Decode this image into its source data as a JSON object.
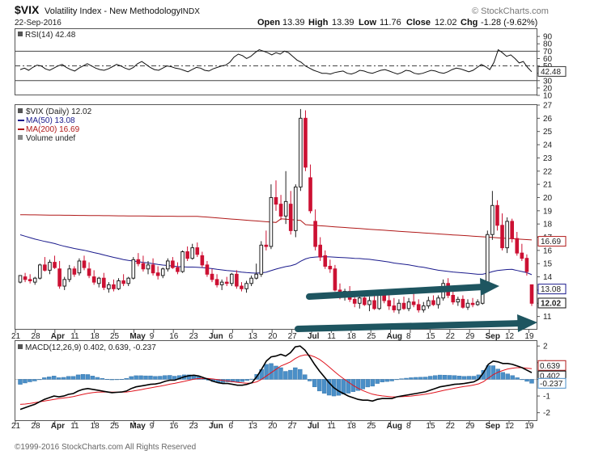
{
  "header": {
    "symbol": "$VIX",
    "name": "Volatility Index - New Methodology",
    "exchange": "INDX",
    "date": "22-Sep-2016",
    "watermark": "© StockCharts.com",
    "open_label": "Open",
    "open": "13.39",
    "high_label": "High",
    "high": "13.39",
    "low_label": "Low",
    "low": "11.76",
    "close_label": "Close",
    "close": "12.02",
    "chg_label": "Chg",
    "chg": "-1.28 (-9.62%)"
  },
  "footer": {
    "copyright": "©1999-2016 StockCharts.com  All Rights Reserved"
  },
  "colors": {
    "up": "#222222",
    "down": "#cc1133",
    "ma50": "#1a1a8c",
    "ma200": "#b01818",
    "volume": "#4a8fc8",
    "arrow": "#1e5560"
  },
  "x_axis": {
    "labels": [
      "21",
      "28",
      "Apr",
      "11",
      "18",
      "25",
      "May",
      "9",
      "16",
      "23",
      "Jun",
      "6",
      "13",
      "20",
      "27",
      "Jul",
      "11",
      "18",
      "25",
      "Aug",
      "8",
      "15",
      "22",
      "29",
      "Sep",
      "12",
      "19"
    ],
    "bold": [
      "Apr",
      "May",
      "Jun",
      "Jul",
      "Aug",
      "Sep"
    ]
  },
  "chart_data": [
    {
      "panel": "rsi",
      "type": "line",
      "legend": "RSI(14) 42.48",
      "ylim": [
        10,
        100
      ],
      "y_ticks": [
        90,
        80,
        70,
        60,
        50,
        40,
        30,
        20,
        10
      ],
      "reference_lines": [
        70,
        50,
        30
      ],
      "last_value": "42.48",
      "values": [
        45,
        47,
        44,
        48,
        51,
        50,
        46,
        44,
        47,
        50,
        52,
        48,
        45,
        43,
        47,
        50,
        53,
        50,
        47,
        45,
        44,
        46,
        49,
        52,
        50,
        47,
        45,
        48,
        53,
        56,
        52,
        48,
        45,
        44,
        47,
        50,
        49,
        47,
        46,
        44,
        42,
        45,
        48,
        47,
        44,
        43,
        46,
        48,
        50,
        51,
        55,
        62,
        66,
        64,
        60,
        63,
        68,
        72,
        70,
        68,
        65,
        68,
        66,
        70,
        68,
        63,
        58,
        55,
        50,
        47,
        44,
        42,
        40,
        40,
        39,
        41,
        42,
        43,
        40,
        39,
        41,
        44,
        43,
        41,
        40,
        42,
        44,
        45,
        43,
        41,
        39,
        41,
        44,
        43,
        40,
        39,
        40,
        42,
        44,
        43,
        41,
        40,
        42,
        45,
        47,
        46,
        44,
        42,
        44,
        48,
        52,
        49,
        45,
        55,
        72,
        68,
        63,
        65,
        60,
        54,
        56,
        48,
        42
      ]
    },
    {
      "panel": "price",
      "type": "candlestick",
      "legend": [
        "$VIX (Daily) 12.02",
        "MA(50) 13.08",
        "MA(200) 16.69",
        "Volume undef"
      ],
      "ylim": [
        10,
        27
      ],
      "y_ticks": [
        27,
        26,
        25,
        24,
        23,
        22,
        21,
        20,
        19,
        18,
        17,
        16,
        15,
        14,
        13,
        12,
        11
      ],
      "ma50_last": "13.08",
      "ma200_last": "16.69",
      "close_last": "12.02",
      "candles": [
        [
          13.6,
          14.1,
          13.5,
          14.1
        ],
        [
          14.0,
          14.3,
          13.6,
          13.8
        ],
        [
          13.8,
          14.2,
          13.5,
          13.7
        ],
        [
          13.6,
          14.0,
          13.4,
          13.9
        ],
        [
          13.9,
          15.0,
          13.8,
          14.9
        ],
        [
          14.9,
          15.5,
          14.4,
          14.5
        ],
        [
          14.5,
          15.3,
          14.2,
          15.1
        ],
        [
          15.1,
          15.6,
          14.6,
          14.7
        ],
        [
          14.6,
          15.2,
          13.1,
          13.3
        ],
        [
          13.3,
          14.0,
          13.0,
          13.8
        ],
        [
          13.8,
          14.9,
          13.6,
          14.6
        ],
        [
          14.6,
          14.8,
          14.0,
          14.2
        ],
        [
          14.3,
          15.4,
          14.1,
          15.2
        ],
        [
          15.2,
          15.6,
          14.5,
          14.7
        ],
        [
          14.6,
          15.1,
          13.9,
          14.1
        ],
        [
          14.0,
          14.5,
          13.4,
          13.6
        ],
        [
          13.5,
          14.0,
          13.2,
          13.9
        ],
        [
          13.9,
          14.3,
          13.0,
          13.2
        ],
        [
          13.1,
          13.6,
          12.8,
          13.4
        ],
        [
          13.4,
          13.8,
          12.9,
          13.1
        ],
        [
          13.1,
          13.9,
          13.0,
          13.7
        ],
        [
          13.7,
          14.2,
          13.3,
          13.5
        ],
        [
          13.5,
          14.0,
          13.3,
          13.9
        ],
        [
          13.9,
          15.5,
          13.8,
          15.3
        ],
        [
          15.3,
          15.8,
          14.8,
          15.0
        ],
        [
          15.0,
          15.6,
          14.4,
          14.6
        ],
        [
          14.6,
          15.2,
          14.2,
          14.9
        ],
        [
          14.9,
          15.4,
          14.1,
          14.3
        ],
        [
          14.3,
          14.8,
          13.8,
          14.1
        ],
        [
          14.1,
          14.7,
          13.9,
          14.6
        ],
        [
          14.6,
          15.4,
          14.4,
          15.2
        ],
        [
          15.2,
          15.5,
          14.6,
          14.7
        ],
        [
          14.7,
          15.1,
          14.2,
          14.4
        ],
        [
          14.4,
          16.0,
          14.3,
          15.9
        ],
        [
          15.9,
          16.3,
          15.2,
          15.4
        ],
        [
          15.4,
          16.5,
          15.3,
          16.2
        ],
        [
          16.2,
          16.6,
          15.5,
          15.7
        ],
        [
          15.6,
          15.9,
          14.7,
          14.9
        ],
        [
          14.9,
          15.2,
          14.0,
          14.2
        ],
        [
          14.2,
          14.6,
          13.6,
          13.8
        ],
        [
          13.8,
          14.2,
          13.2,
          13.4
        ],
        [
          13.4,
          13.8,
          13.0,
          13.6
        ],
        [
          13.6,
          14.0,
          13.3,
          13.5
        ],
        [
          13.5,
          14.3,
          13.3,
          14.2
        ],
        [
          14.2,
          14.5,
          13.1,
          13.3
        ],
        [
          13.3,
          13.6,
          12.9,
          13.1
        ],
        [
          13.1,
          13.7,
          12.8,
          13.5
        ],
        [
          13.5,
          14.1,
          13.3,
          13.9
        ],
        [
          13.9,
          15.0,
          13.8,
          14.2
        ],
        [
          14.2,
          16.7,
          14.0,
          16.4
        ],
        [
          16.4,
          17.5,
          16.0,
          16.3
        ],
        [
          16.3,
          21.0,
          16.1,
          20.0
        ],
        [
          20.0,
          21.3,
          19.0,
          19.5
        ],
        [
          19.5,
          20.2,
          18.3,
          18.6
        ],
        [
          18.6,
          22.0,
          18.0,
          19.7
        ],
        [
          19.5,
          20.5,
          17.2,
          17.5
        ],
        [
          17.5,
          21.0,
          17.0,
          20.8
        ],
        [
          20.8,
          26.7,
          20.5,
          26.0
        ],
        [
          26.0,
          26.6,
          22.0,
          22.3
        ],
        [
          21.5,
          22.5,
          18.8,
          19.0
        ],
        [
          18.2,
          19.1,
          16.0,
          16.3
        ],
        [
          16.4,
          17.0,
          15.2,
          15.5
        ],
        [
          15.6,
          16.0,
          14.6,
          14.8
        ],
        [
          14.8,
          15.3,
          14.3,
          14.6
        ],
        [
          14.6,
          14.9,
          12.9,
          13.0
        ],
        [
          13.0,
          13.5,
          12.3,
          12.5
        ],
        [
          12.5,
          13.1,
          12.2,
          12.9
        ],
        [
          12.9,
          13.3,
          12.1,
          12.3
        ],
        [
          12.3,
          12.8,
          11.7,
          12.0
        ],
        [
          12.0,
          12.6,
          11.6,
          12.4
        ],
        [
          12.4,
          12.8,
          11.8,
          11.9
        ],
        [
          11.9,
          12.5,
          11.4,
          12.2
        ],
        [
          12.2,
          12.7,
          11.5,
          11.6
        ],
        [
          11.6,
          12.9,
          11.5,
          12.7
        ],
        [
          12.7,
          13.0,
          12.0,
          12.2
        ],
        [
          12.2,
          12.6,
          11.5,
          11.8
        ],
        [
          11.8,
          12.4,
          11.3,
          11.5
        ],
        [
          11.5,
          12.3,
          11.2,
          12.0
        ],
        [
          12.0,
          12.5,
          11.5,
          11.6
        ],
        [
          11.6,
          12.4,
          11.4,
          12.1
        ],
        [
          12.1,
          12.8,
          11.7,
          11.9
        ],
        [
          11.9,
          12.3,
          11.3,
          11.5
        ],
        [
          11.5,
          12.1,
          11.3,
          11.8
        ],
        [
          11.8,
          12.5,
          11.6,
          12.2
        ],
        [
          12.2,
          12.6,
          11.8,
          11.9
        ],
        [
          11.9,
          12.6,
          11.6,
          12.4
        ],
        [
          12.4,
          13.8,
          12.2,
          13.5
        ],
        [
          13.5,
          13.9,
          12.4,
          12.6
        ],
        [
          12.6,
          13.0,
          11.9,
          12.1
        ],
        [
          12.1,
          12.5,
          11.8,
          12.3
        ],
        [
          12.3,
          12.6,
          11.6,
          11.7
        ],
        [
          11.7,
          12.3,
          11.5,
          12.0
        ],
        [
          12.0,
          12.4,
          11.7,
          11.9
        ],
        [
          11.9,
          12.3,
          11.8,
          12.1
        ],
        [
          12.0,
          13.5,
          11.9,
          13.3
        ],
        [
          13.3,
          17.5,
          13.2,
          17.2
        ],
        [
          17.2,
          20.5,
          16.8,
          19.4
        ],
        [
          19.4,
          19.8,
          17.5,
          17.9
        ],
        [
          17.9,
          18.8,
          16.0,
          16.2
        ],
        [
          16.2,
          18.5,
          15.8,
          18.2
        ],
        [
          18.2,
          18.4,
          16.6,
          16.9
        ],
        [
          16.9,
          17.4,
          15.6,
          15.8
        ],
        [
          15.8,
          16.5,
          15.2,
          15.4
        ],
        [
          15.4,
          15.7,
          14.1,
          14.4
        ],
        [
          13.4,
          13.4,
          11.8,
          12.0
        ]
      ]
    },
    {
      "panel": "macd",
      "type": "line+histogram",
      "legend": "MACD(12,26,9) 0.402, 0.639, -0.237",
      "legend_values": [
        "0.402",
        "0.639",
        "-0.237"
      ],
      "ylim": [
        -2.5,
        2.3
      ],
      "y_ticks": [
        2,
        1,
        0,
        -1,
        -2
      ],
      "macd": [
        -1.8,
        -1.7,
        -1.6,
        -1.5,
        -1.35,
        -1.2,
        -1.1,
        -1.0,
        -1.05,
        -1.0,
        -0.9,
        -0.85,
        -0.7,
        -0.6,
        -0.55,
        -0.6,
        -0.65,
        -0.7,
        -0.75,
        -0.8,
        -0.78,
        -0.76,
        -0.7,
        -0.55,
        -0.45,
        -0.4,
        -0.35,
        -0.3,
        -0.28,
        -0.22,
        -0.12,
        -0.05,
        -0.05,
        0.05,
        0.15,
        0.22,
        0.25,
        0.2,
        0.1,
        0.0,
        -0.12,
        -0.2,
        -0.25,
        -0.25,
        -0.3,
        -0.35,
        -0.35,
        -0.3,
        -0.2,
        0.15,
        0.6,
        1.1,
        1.35,
        1.4,
        1.5,
        1.4,
        1.6,
        1.95,
        2.0,
        1.75,
        1.35,
        0.9,
        0.5,
        0.15,
        -0.2,
        -0.5,
        -0.7,
        -0.85,
        -1.0,
        -1.1,
        -1.2,
        -1.25,
        -1.25,
        -1.3,
        -1.2,
        -1.15,
        -1.15,
        -1.15,
        -1.05,
        -1.0,
        -0.95,
        -0.9,
        -0.85,
        -0.8,
        -0.75,
        -0.65,
        -0.55,
        -0.45,
        -0.4,
        -0.35,
        -0.3,
        -0.28,
        -0.25,
        -0.2,
        -0.15,
        0.0,
        0.4,
        0.9,
        1.1,
        1.05,
        0.95,
        0.95,
        0.9,
        0.8,
        0.7,
        0.55,
        0.402
      ],
      "signal": [
        -1.5,
        -1.48,
        -1.45,
        -1.4,
        -1.35,
        -1.3,
        -1.25,
        -1.2,
        -1.15,
        -1.12,
        -1.08,
        -1.03,
        -0.97,
        -0.9,
        -0.84,
        -0.8,
        -0.77,
        -0.76,
        -0.76,
        -0.77,
        -0.77,
        -0.77,
        -0.76,
        -0.72,
        -0.67,
        -0.62,
        -0.56,
        -0.51,
        -0.46,
        -0.41,
        -0.35,
        -0.29,
        -0.24,
        -0.18,
        -0.12,
        -0.05,
        0.01,
        0.05,
        0.06,
        0.05,
        0.02,
        -0.02,
        -0.07,
        -0.1,
        -0.14,
        -0.18,
        -0.21,
        -0.23,
        -0.22,
        -0.15,
        -0.0,
        0.2,
        0.4,
        0.6,
        0.8,
        0.92,
        1.05,
        1.25,
        1.4,
        1.47,
        1.45,
        1.35,
        1.2,
        0.99,
        0.75,
        0.5,
        0.26,
        0.04,
        -0.17,
        -0.36,
        -0.53,
        -0.67,
        -0.79,
        -0.89,
        -0.95,
        -0.99,
        -1.02,
        -1.05,
        -1.05,
        -1.04,
        -1.02,
        -1.0,
        -0.97,
        -0.93,
        -0.89,
        -0.84,
        -0.78,
        -0.71,
        -0.65,
        -0.59,
        -0.53,
        -0.48,
        -0.43,
        -0.39,
        -0.34,
        -0.27,
        -0.14,
        0.07,
        0.28,
        0.43,
        0.53,
        0.62,
        0.67,
        0.7,
        0.7,
        0.67,
        0.639
      ]
    }
  ]
}
